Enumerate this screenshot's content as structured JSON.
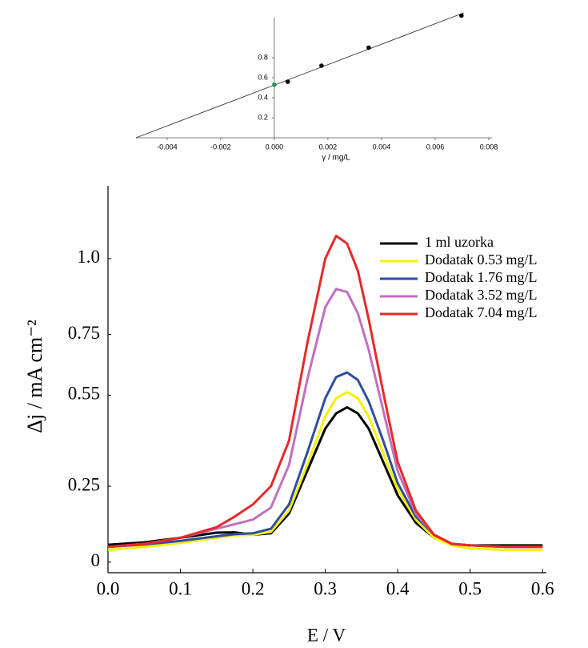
{
  "chart_data": [
    {
      "type": "scatter",
      "xlabel": "γ / mg/L",
      "xlim": [
        -0.00516,
        0.00812
      ],
      "ylim": [
        0,
        1.2
      ],
      "xticks": [
        -0.004,
        -0.002,
        {
          "value": 0,
          "label": "0.000"
        },
        0.002,
        0.004,
        0.006,
        0.008
      ],
      "yticks": [
        0.2,
        0.4,
        0.6,
        0.8
      ],
      "series": [
        {
          "style": "line",
          "color": "#333333",
          "x": [
            -0.00516,
            0.00707
          ],
          "values": [
            0,
            1.248
          ]
        },
        {
          "style": "points",
          "color": "#000000",
          "x": [
            0.0005,
            0.00176,
            0.00352,
            0.00698
          ],
          "values": [
            0.56,
            0.72,
            0.9,
            1.22
          ]
        },
        {
          "style": "points",
          "color": "#1a9a50",
          "x": [
            0
          ],
          "values": [
            0.53
          ]
        }
      ]
    },
    {
      "type": "line",
      "xlabel": "E / V",
      "ylabel": "Δj / mA cm⁻²",
      "xlim": [
        0,
        0.602
      ],
      "ylim": [
        -0.035,
        1.24
      ],
      "xticks": [
        {
          "value": 0,
          "label": "0.0"
        },
        0.1,
        0.2,
        0.3,
        0.4,
        0.5,
        0.6
      ],
      "yticks": [
        0,
        0.25,
        0.55,
        0.75,
        {
          "value": 1,
          "label": "1.0"
        }
      ],
      "x": [
        0,
        0.05,
        0.1,
        0.15,
        0.175,
        0.2,
        0.225,
        0.25,
        0.275,
        0.3,
        0.315,
        0.33,
        0.345,
        0.36,
        0.38,
        0.4,
        0.425,
        0.45,
        0.475,
        0.5,
        0.55,
        0.6
      ],
      "series": [
        {
          "name": "1 ml uzorka",
          "color": "#000000",
          "values": [
            0.057,
            0.065,
            0.08,
            0.097,
            0.098,
            0.09,
            0.095,
            0.16,
            0.3,
            0.44,
            0.49,
            0.51,
            0.49,
            0.44,
            0.33,
            0.22,
            0.13,
            0.08,
            0.06,
            0.055,
            0.055,
            0.055
          ]
        },
        {
          "name": "Dodatak 0.53 mg/L",
          "color": "#f2f200",
          "values": [
            0.04,
            0.05,
            0.063,
            0.08,
            0.088,
            0.09,
            0.1,
            0.17,
            0.32,
            0.48,
            0.54,
            0.56,
            0.54,
            0.48,
            0.36,
            0.24,
            0.14,
            0.08,
            0.055,
            0.045,
            0.04,
            0.04
          ]
        },
        {
          "name": "Dodatak 1.76 mg/L",
          "color": "#2e4ea0",
          "values": [
            0.05,
            0.058,
            0.07,
            0.085,
            0.092,
            0.095,
            0.11,
            0.19,
            0.36,
            0.54,
            0.61,
            0.625,
            0.6,
            0.53,
            0.4,
            0.26,
            0.15,
            0.09,
            0.06,
            0.055,
            0.05,
            0.05
          ]
        },
        {
          "name": "Dodatak 3.52 mg/L",
          "color": "#c070c0",
          "values": [
            0.05,
            0.06,
            0.08,
            0.11,
            0.125,
            0.14,
            0.18,
            0.32,
            0.6,
            0.84,
            0.9,
            0.89,
            0.82,
            0.7,
            0.5,
            0.3,
            0.16,
            0.09,
            0.06,
            0.055,
            0.05,
            0.05
          ]
        },
        {
          "name": "Dodatak 7.04 mg/L",
          "color": "#e52a2a",
          "values": [
            0.05,
            0.06,
            0.08,
            0.115,
            0.15,
            0.19,
            0.25,
            0.4,
            0.72,
            1.0,
            1.075,
            1.05,
            0.96,
            0.8,
            0.56,
            0.33,
            0.17,
            0.09,
            0.06,
            0.055,
            0.05,
            0.05
          ]
        }
      ]
    }
  ]
}
